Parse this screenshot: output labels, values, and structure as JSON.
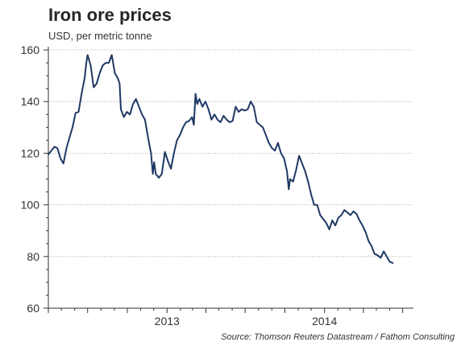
{
  "chart_data": {
    "type": "line",
    "title": "Iron ore prices",
    "subtitle": "USD, per metric tonne",
    "source": "Source: Thomson Reuters Datastream / Fathom Consulting",
    "xlabel": "",
    "ylabel": "",
    "ylim": [
      60,
      160
    ],
    "yticks": [
      60,
      80,
      100,
      120,
      140,
      160
    ],
    "xlim": [
      "2012-04-01",
      "2014-07-26"
    ],
    "xticks": [
      {
        "label": "2013",
        "date": "2013-01-01"
      },
      {
        "label": "2014",
        "date": "2014-01-01"
      }
    ],
    "grid": "horizontal dotted",
    "legend": "none",
    "line_color": "#1f3864",
    "series": [
      {
        "points": [
          [
            "2012-04-01",
            119.5
          ],
          [
            "2012-04-08",
            121.0
          ],
          [
            "2012-04-15",
            122.5
          ],
          [
            "2012-04-22",
            122.0
          ],
          [
            "2012-04-29",
            118.0
          ],
          [
            "2012-05-06",
            116.0
          ],
          [
            "2012-05-13",
            122.0
          ],
          [
            "2012-05-20",
            126.0
          ],
          [
            "2012-05-27",
            130.0
          ],
          [
            "2012-06-03",
            135.5
          ],
          [
            "2012-06-10",
            136.0
          ],
          [
            "2012-06-17",
            143.0
          ],
          [
            "2012-06-24",
            149.0
          ],
          [
            "2012-06-28",
            155.0
          ],
          [
            "2012-07-01",
            158.0
          ],
          [
            "2012-07-08",
            154.0
          ],
          [
            "2012-07-15",
            145.5
          ],
          [
            "2012-07-22",
            147.0
          ],
          [
            "2012-07-29",
            151.0
          ],
          [
            "2012-08-05",
            154.0
          ],
          [
            "2012-08-12",
            155.0
          ],
          [
            "2012-08-19",
            155.0
          ],
          [
            "2012-08-26",
            158.0
          ],
          [
            "2012-09-02",
            151.0
          ],
          [
            "2012-09-09",
            149.0
          ],
          [
            "2012-09-13",
            147.0
          ],
          [
            "2012-09-16",
            137.0
          ],
          [
            "2012-09-23",
            134.0
          ],
          [
            "2012-09-30",
            136.0
          ],
          [
            "2012-10-07",
            135.0
          ],
          [
            "2012-10-14",
            139.0
          ],
          [
            "2012-10-21",
            141.0
          ],
          [
            "2012-10-28",
            138.0
          ],
          [
            "2012-11-04",
            135.0
          ],
          [
            "2012-11-11",
            133.0
          ],
          [
            "2012-11-18",
            126.0
          ],
          [
            "2012-11-25",
            120.0
          ],
          [
            "2012-11-29",
            112.0
          ],
          [
            "2012-12-02",
            116.5
          ],
          [
            "2012-12-06",
            112.0
          ],
          [
            "2012-12-13",
            110.5
          ],
          [
            "2012-12-20",
            112.0
          ],
          [
            "2012-12-27",
            120.5
          ],
          [
            "2013-01-03",
            117.0
          ],
          [
            "2013-01-10",
            114.0
          ],
          [
            "2013-01-17",
            120.0
          ],
          [
            "2013-01-24",
            125.0
          ],
          [
            "2013-01-31",
            127.0
          ],
          [
            "2013-02-07",
            130.0
          ],
          [
            "2013-02-14",
            132.0
          ],
          [
            "2013-02-21",
            132.5
          ],
          [
            "2013-02-28",
            134.0
          ],
          [
            "2013-03-04",
            131.0
          ],
          [
            "2013-03-08",
            143.0
          ],
          [
            "2013-03-12",
            139.0
          ],
          [
            "2013-03-17",
            141.0
          ],
          [
            "2013-03-24",
            138.0
          ],
          [
            "2013-03-31",
            140.0
          ],
          [
            "2013-04-07",
            137.0
          ],
          [
            "2013-04-14",
            133.0
          ],
          [
            "2013-04-21",
            135.0
          ],
          [
            "2013-04-28",
            133.0
          ],
          [
            "2013-05-05",
            132.0
          ],
          [
            "2013-05-12",
            134.5
          ],
          [
            "2013-05-19",
            133.0
          ],
          [
            "2013-05-26",
            132.0
          ],
          [
            "2013-06-02",
            132.5
          ],
          [
            "2013-06-09",
            138.0
          ],
          [
            "2013-06-16",
            136.0
          ],
          [
            "2013-06-23",
            137.0
          ],
          [
            "2013-06-30",
            136.5
          ],
          [
            "2013-07-07",
            137.0
          ],
          [
            "2013-07-14",
            140.0
          ],
          [
            "2013-07-21",
            138.0
          ],
          [
            "2013-07-28",
            132.0
          ],
          [
            "2013-08-04",
            131.0
          ],
          [
            "2013-08-11",
            130.0
          ],
          [
            "2013-08-18",
            127.0
          ],
          [
            "2013-08-25",
            124.0
          ],
          [
            "2013-09-01",
            122.0
          ],
          [
            "2013-09-08",
            121.0
          ],
          [
            "2013-09-15",
            124.0
          ],
          [
            "2013-09-22",
            120.0
          ],
          [
            "2013-09-29",
            118.0
          ],
          [
            "2013-10-06",
            113.0
          ],
          [
            "2013-10-10",
            106.0
          ],
          [
            "2013-10-13",
            110.0
          ],
          [
            "2013-10-20",
            109.0
          ],
          [
            "2013-10-27",
            113.5
          ],
          [
            "2013-11-03",
            119.0
          ],
          [
            "2013-11-10",
            116.0
          ],
          [
            "2013-11-17",
            113.0
          ],
          [
            "2013-11-24",
            109.0
          ],
          [
            "2013-12-01",
            104.0
          ],
          [
            "2013-12-08",
            100.0
          ],
          [
            "2013-12-15",
            100.0
          ],
          [
            "2013-12-22",
            96.0
          ],
          [
            "2013-12-29",
            94.5
          ],
          [
            "2014-01-05",
            93.0
          ],
          [
            "2014-01-12",
            90.5
          ],
          [
            "2014-01-19",
            94.0
          ],
          [
            "2014-01-26",
            92.0
          ],
          [
            "2014-02-02",
            95.0
          ],
          [
            "2014-02-09",
            96.0
          ],
          [
            "2014-02-16",
            98.0
          ],
          [
            "2014-02-23",
            97.0
          ],
          [
            "2014-03-02",
            96.0
          ],
          [
            "2014-03-09",
            97.5
          ],
          [
            "2014-03-16",
            96.5
          ],
          [
            "2014-03-23",
            94.0
          ],
          [
            "2014-03-30",
            92.0
          ],
          [
            "2014-04-06",
            89.5
          ],
          [
            "2014-04-13",
            86.0
          ],
          [
            "2014-04-20",
            84.0
          ],
          [
            "2014-04-27",
            81.0
          ],
          [
            "2014-05-04",
            80.5
          ],
          [
            "2014-05-11",
            79.5
          ],
          [
            "2014-05-18",
            82.0
          ],
          [
            "2014-05-25",
            80.0
          ],
          [
            "2014-06-01",
            78.0
          ],
          [
            "2014-06-08",
            77.5
          ]
        ]
      }
    ]
  }
}
